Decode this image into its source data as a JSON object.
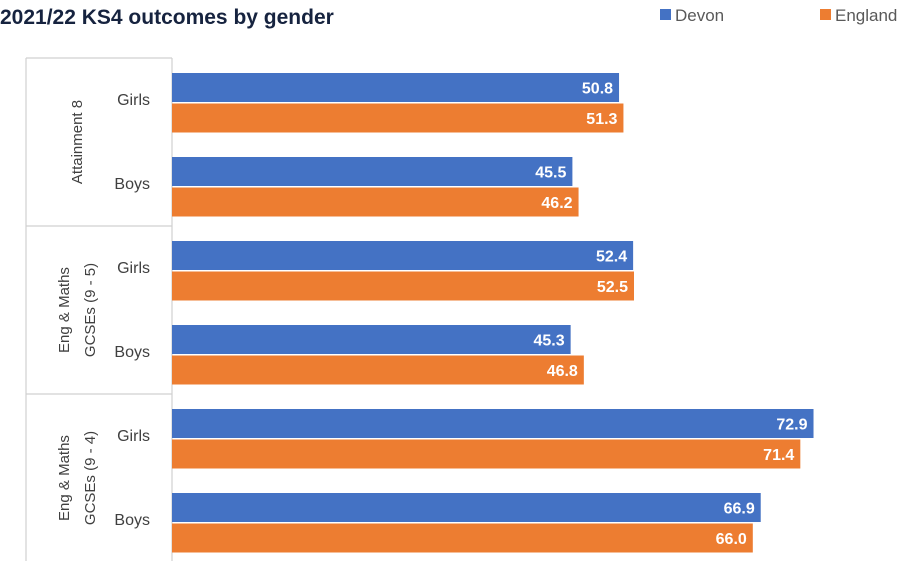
{
  "chart_data": {
    "type": "bar",
    "orientation": "horizontal",
    "title": "2021/22 KS4 outcomes by gender",
    "legend_position": "top-right",
    "grid": false,
    "xlim": [
      0,
      80
    ],
    "series": [
      {
        "name": "Devon",
        "color": "#4472c4",
        "values": [
          50.8,
          45.5,
          52.4,
          45.3,
          72.9,
          66.9
        ],
        "labels": [
          "50.8",
          "45.5",
          "52.4",
          "45.3",
          "72.9",
          "66.9"
        ]
      },
      {
        "name": "England",
        "color": "#ed7d31",
        "values": [
          51.3,
          46.2,
          52.5,
          46.8,
          71.4,
          66.0
        ],
        "labels": [
          "51.3",
          "46.2",
          "52.5",
          "46.8",
          "71.4",
          "66.0"
        ]
      }
    ],
    "groups": [
      {
        "lines": [
          "Attainment 8"
        ],
        "categories": [
          "Girls",
          "Boys"
        ]
      },
      {
        "lines": [
          "Eng & Maths",
          "GCSEs (9 - 5)"
        ],
        "categories": [
          "Girls",
          "Boys"
        ]
      },
      {
        "lines": [
          "Eng & Maths",
          "GCSEs (9 - 4)"
        ],
        "categories": [
          "Girls",
          "Boys"
        ]
      }
    ]
  }
}
